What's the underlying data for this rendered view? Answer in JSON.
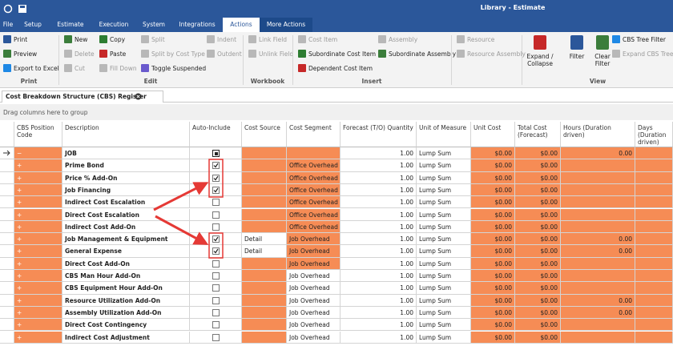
{
  "title_bar": {
    "title": "Library - Estimate"
  },
  "menu": {
    "tabs": [
      "File",
      "Setup",
      "Estimate",
      "Execution",
      "System",
      "Integrations",
      "Actions",
      "More Actions"
    ]
  },
  "ribbon": {
    "groups": [
      {
        "label": "Print",
        "items": [
          {
            "label": "Print",
            "enabled": true
          },
          {
            "label": "Preview",
            "enabled": true
          },
          {
            "label": "Export to Excel",
            "enabled": true
          }
        ]
      },
      {
        "label": "Edit",
        "items": [
          {
            "label": "New",
            "enabled": true
          },
          {
            "label": "Delete",
            "enabled": false
          },
          {
            "label": "Cut",
            "enabled": false
          },
          {
            "label": "Copy",
            "enabled": true
          },
          {
            "label": "Paste",
            "enabled": true
          },
          {
            "label": "Fill Down",
            "enabled": false
          },
          {
            "label": "Split",
            "enabled": false
          },
          {
            "label": "Split by Cost Type",
            "enabled": false
          },
          {
            "label": "Toggle Suspended",
            "enabled": true
          },
          {
            "label": "Indent",
            "enabled": false
          },
          {
            "label": "Outdent",
            "enabled": false
          }
        ]
      },
      {
        "label": "Workbook",
        "items": [
          {
            "label": "Link Field",
            "enabled": false
          },
          {
            "label": "Unlink Field",
            "enabled": false
          }
        ]
      },
      {
        "label": "Insert",
        "items": [
          {
            "label": "Cost Item",
            "enabled": false
          },
          {
            "label": "Subordinate Cost Item",
            "enabled": true
          },
          {
            "label": "Dependent Cost Item",
            "enabled": true
          },
          {
            "label": "Assembly",
            "enabled": false
          },
          {
            "label": "Subordinate Assembly",
            "enabled": true
          }
        ]
      },
      {
        "items": [
          {
            "label": "Resource",
            "enabled": false
          },
          {
            "label": "Resource Assembly",
            "enabled": false
          }
        ]
      },
      {
        "label": "View",
        "items": [
          {
            "label": "Expand / Collapse",
            "enabled": true
          },
          {
            "label": "Filter",
            "enabled": true
          },
          {
            "label": "Clear Filter",
            "enabled": true
          },
          {
            "label": "CBS Tree Filter",
            "enabled": true
          },
          {
            "label": "Expand CBS Tree",
            "enabled": false
          }
        ]
      }
    ]
  },
  "document_tab": "Cost Breakdown Structure (CBS) Register",
  "group_panel": "Drag columns here to group",
  "table": {
    "columns": [
      "CBS Position Code",
      "Description",
      "Auto-Include",
      "Cost Source",
      "Cost Segment",
      "Forecast (T/O) Quantity",
      "Unit of Measure",
      "Unit Cost",
      "Total Cost (Forecast)",
      "Hours (Duration driven)",
      "Days (Duration driven)"
    ],
    "rows": [
      [
        "−",
        "JOB",
        "mixed",
        null,
        null,
        "1.00",
        "Lump Sum",
        "$0.00",
        "$0.00",
        "0.00",
        null
      ],
      [
        "+",
        "Prime Bond",
        "checked",
        null,
        "Office Overhead",
        "1.00",
        "Lump Sum",
        "$0.00",
        "$0.00",
        null,
        null
      ],
      [
        "+",
        "Price % Add-On",
        "checked",
        null,
        "Office Overhead",
        "1.00",
        "Lump Sum",
        "$0.00",
        "$0.00",
        null,
        null
      ],
      [
        "+",
        "Job Financing",
        "checked",
        null,
        "Office Overhead",
        "1.00",
        "Lump Sum",
        "$0.00",
        "$0.00",
        null,
        null
      ],
      [
        "+",
        "Indirect Cost Escalation",
        "unchecked",
        null,
        "Office Overhead",
        "1.00",
        "Lump Sum",
        "$0.00",
        "$0.00",
        null,
        null
      ],
      [
        "+",
        "Direct Cost Escalation",
        "unchecked",
        null,
        "Office Overhead",
        "1.00",
        "Lump Sum",
        "$0.00",
        "$0.00",
        null,
        null
      ],
      [
        "+",
        "Indirect Cost Add-On",
        "unchecked",
        null,
        "Office Overhead",
        "1.00",
        "Lump Sum",
        "$0.00",
        "$0.00",
        null,
        null
      ],
      [
        "+",
        "Job Management & Equipment",
        "checked",
        "Detail",
        "Job Overhead",
        "1.00",
        "Lump Sum",
        "$0.00",
        "$0.00",
        "0.00",
        null
      ],
      [
        "+",
        "General Expense",
        "checked",
        "Detail",
        "Job Overhead",
        "1.00",
        "Lump Sum",
        "$0.00",
        "$0.00",
        "0.00",
        null
      ],
      [
        "+",
        "Direct Cost Add-On",
        "unchecked",
        null,
        "Job Overhead",
        "1.00",
        "Lump Sum",
        "$0.00",
        "$0.00",
        null,
        null
      ],
      [
        "+",
        "CBS Man Hour Add-On",
        "unchecked",
        null,
        "Job Overhead",
        "1.00",
        "Lump Sum",
        "$0.00",
        "$0.00",
        null,
        null
      ],
      [
        "+",
        "CBS Equipment Hour Add-On",
        "unchecked",
        null,
        "Job Overhead",
        "1.00",
        "Lump Sum",
        "$0.00",
        "$0.00",
        null,
        null
      ],
      [
        "+",
        "Resource Utilization Add-On",
        "unchecked",
        null,
        "Job Overhead",
        "1.00",
        "Lump Sum",
        "$0.00",
        "$0.00",
        "0.00",
        null
      ],
      [
        "+",
        "Assembly Utilization Add-On",
        "unchecked",
        null,
        "Job Overhead",
        "1.00",
        "Lump Sum",
        "$0.00",
        "$0.00",
        "0.00",
        null
      ],
      [
        "+",
        "Direct Cost Contingency",
        "unchecked",
        null,
        "Job Overhead",
        "1.00",
        "Lump Sum",
        "$0.00",
        "$0.00",
        null,
        null
      ],
      [
        "+",
        "Indirect Cost Adjustment",
        "unchecked",
        null,
        "Job Overhead",
        "1.00",
        "Lump Sum",
        "$0.00",
        "$0.00",
        null,
        null
      ]
    ]
  }
}
